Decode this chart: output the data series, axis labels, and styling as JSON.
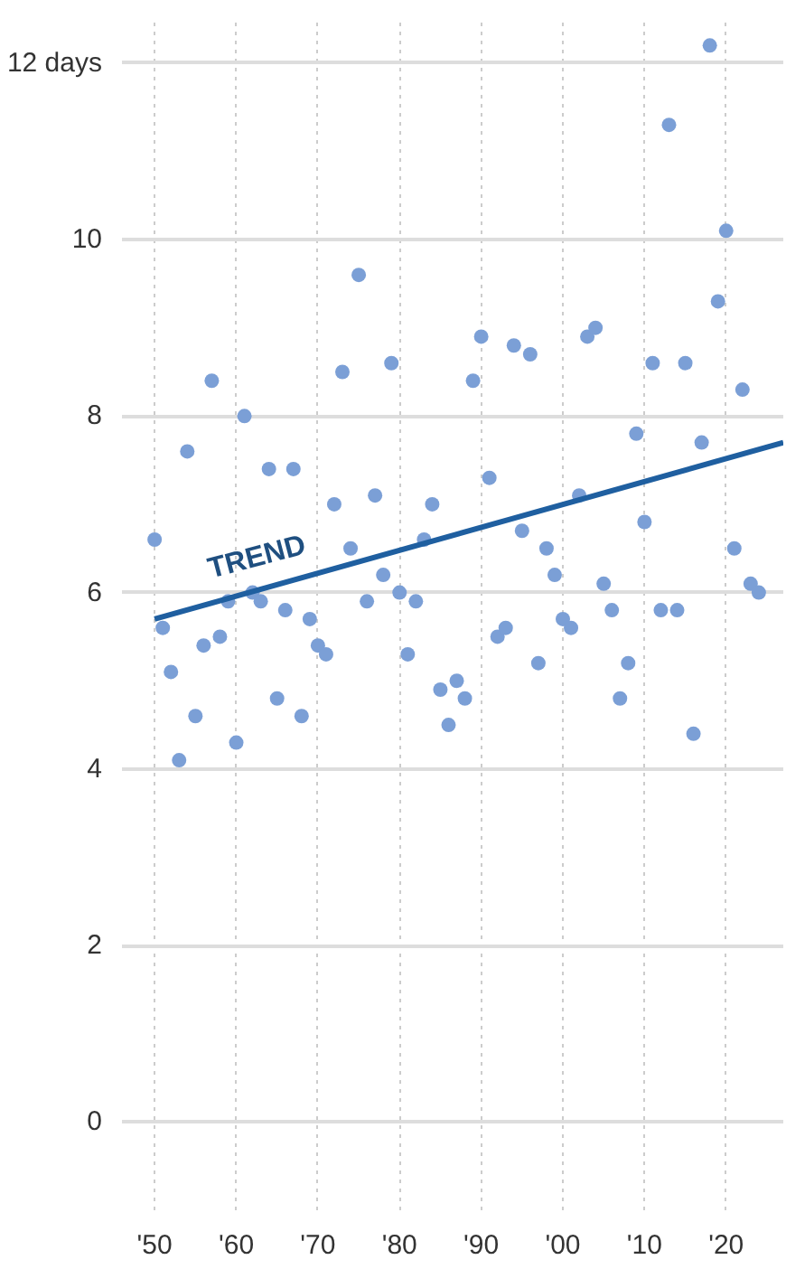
{
  "chart_data": {
    "type": "scatter",
    "x": [
      1950,
      1951,
      1952,
      1953,
      1954,
      1955,
      1956,
      1957,
      1958,
      1959,
      1960,
      1961,
      1962,
      1963,
      1964,
      1965,
      1966,
      1967,
      1968,
      1969,
      1970,
      1971,
      1972,
      1973,
      1974,
      1975,
      1976,
      1977,
      1978,
      1979,
      1980,
      1981,
      1982,
      1983,
      1984,
      1985,
      1986,
      1987,
      1988,
      1989,
      1990,
      1991,
      1992,
      1993,
      1994,
      1995,
      1996,
      1997,
      1998,
      1999,
      2000,
      2001,
      2002,
      2003,
      2004,
      2005,
      2006,
      2007,
      2008,
      2009,
      2010,
      2011,
      2012,
      2013,
      2014,
      2015,
      2016,
      2017,
      2018,
      2019,
      2020,
      2021,
      2022,
      2023,
      2024
    ],
    "series": [
      {
        "color": "#7b9fd6",
        "values": [
          6.6,
          5.6,
          5.1,
          4.1,
          7.6,
          4.6,
          5.4,
          8.4,
          5.5,
          5.9,
          4.3,
          8.0,
          6.0,
          5.9,
          7.4,
          4.8,
          5.8,
          7.4,
          4.6,
          5.7,
          5.4,
          5.3,
          7.0,
          8.5,
          6.5,
          9.6,
          5.9,
          7.1,
          6.2,
          8.6,
          6.0,
          5.3,
          5.9,
          6.6,
          7.0,
          4.9,
          4.5,
          5.0,
          4.8,
          8.4,
          8.9,
          7.3,
          5.5,
          5.6,
          8.8,
          6.7,
          8.7,
          5.2,
          6.5,
          6.2,
          5.7,
          5.6,
          7.1,
          8.9,
          9.0,
          6.1,
          5.8,
          4.8,
          5.2,
          7.8,
          6.8,
          8.6,
          5.8,
          11.3,
          5.8,
          8.6,
          4.4,
          7.7,
          12.2,
          9.3,
          10.1,
          6.5,
          8.3,
          6.1,
          6.0
        ]
      },
      {
        "type": "line",
        "marker": "none",
        "color": "#1f5fa0",
        "x": [
          1950,
          2027
        ],
        "values": [
          5.7,
          7.7
        ]
      }
    ],
    "annotations": [
      {
        "text": "TREND",
        "x": 1958,
        "y": 6.0
      }
    ],
    "xlim": [
      1946,
      2027
    ],
    "ylim": [
      -1.0,
      12.5
    ],
    "xticks": [
      {
        "value": 1950,
        "label": "'50"
      },
      {
        "value": 1960,
        "label": "'60"
      },
      {
        "value": 1970,
        "label": "'70"
      },
      {
        "value": 1980,
        "label": "'80"
      },
      {
        "value": 1990,
        "label": "'90"
      },
      {
        "value": 2000,
        "label": "'00"
      },
      {
        "value": 2010,
        "label": "'10"
      },
      {
        "value": 2020,
        "label": "'20"
      }
    ],
    "yticks": [
      0,
      2,
      4,
      6,
      8,
      10,
      {
        "value": 12,
        "label": "12 days"
      }
    ],
    "grid": true,
    "marker": "circle",
    "line_style": "solid"
  }
}
